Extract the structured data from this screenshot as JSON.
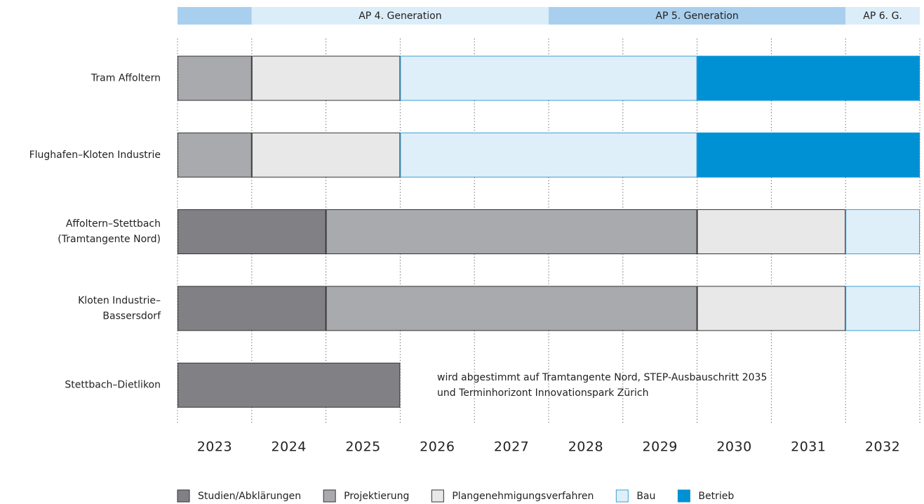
{
  "chart_data": {
    "type": "gantt",
    "xlim": [
      2023,
      2033
    ],
    "xticks": [
      2023,
      2024,
      2025,
      2026,
      2027,
      2028,
      2029,
      2030,
      2031,
      2032,
      2033
    ],
    "categories": [
      "2023",
      "2024",
      "2025",
      "2026",
      "2027",
      "2028",
      "2029",
      "2030",
      "2031",
      "2032"
    ],
    "phases": [
      {
        "name": "Studien/Abklärungen",
        "color": "#818185",
        "border": "#333333"
      },
      {
        "name": "Projektierung",
        "color": "#a9aaad",
        "border": "#333333"
      },
      {
        "name": "Plangenehmigungsverfahren",
        "color": "#e8e8e9",
        "border": "#333333"
      },
      {
        "name": "Bau",
        "color": "#dfeff9",
        "border": "#3a9fd8"
      },
      {
        "name": "Betrieb",
        "color": "#0091d5",
        "border": "#0091d5"
      }
    ],
    "periods": [
      {
        "label": null,
        "start": 2023,
        "end": 2024,
        "color": "#a9cfee"
      },
      {
        "label": "AP 4. Generation",
        "start": 2024,
        "end": 2028,
        "color": "#dbedf9"
      },
      {
        "label": "AP 5. Generation",
        "start": 2028,
        "end": 2032,
        "color": "#a9cfee"
      },
      {
        "label": "AP 6. G.",
        "start": 2032,
        "end": 2033,
        "color": "#dbedf9"
      }
    ],
    "tasks": [
      {
        "label": [
          "Tram Affoltern"
        ],
        "segments": [
          {
            "phase": 1,
            "start": 2023,
            "end": 2024
          },
          {
            "phase": 2,
            "start": 2024,
            "end": 2026
          },
          {
            "phase": 3,
            "start": 2026,
            "end": 2030
          },
          {
            "phase": 4,
            "start": 2030,
            "end": 2033
          }
        ]
      },
      {
        "label": [
          "Flughafen–Kloten Industrie"
        ],
        "segments": [
          {
            "phase": 1,
            "start": 2023,
            "end": 2024
          },
          {
            "phase": 2,
            "start": 2024,
            "end": 2026
          },
          {
            "phase": 3,
            "start": 2026,
            "end": 2030
          },
          {
            "phase": 4,
            "start": 2030,
            "end": 2033
          }
        ]
      },
      {
        "label": [
          "Affoltern–Stettbach",
          "(Tramtangente Nord)"
        ],
        "segments": [
          {
            "phase": 0,
            "start": 2023,
            "end": 2025
          },
          {
            "phase": 1,
            "start": 2025,
            "end": 2030
          },
          {
            "phase": 2,
            "start": 2030,
            "end": 2032
          },
          {
            "phase": 3,
            "start": 2032,
            "end": 2033
          }
        ]
      },
      {
        "label": [
          "Kloten Industrie–",
          "Bassersdorf"
        ],
        "segments": [
          {
            "phase": 0,
            "start": 2023,
            "end": 2025
          },
          {
            "phase": 1,
            "start": 2025,
            "end": 2030
          },
          {
            "phase": 2,
            "start": 2030,
            "end": 2032
          },
          {
            "phase": 3,
            "start": 2032,
            "end": 2033
          }
        ]
      },
      {
        "label": [
          "Stettbach–Dietlikon"
        ],
        "segments": [
          {
            "phase": 0,
            "start": 2023,
            "end": 2026
          }
        ]
      }
    ],
    "annotation": [
      "wird abgestimmt auf Tramtangente Nord, STEP-Ausbauschritt 2035",
      "und Terminhorizont Innovationspark Zürich"
    ]
  }
}
